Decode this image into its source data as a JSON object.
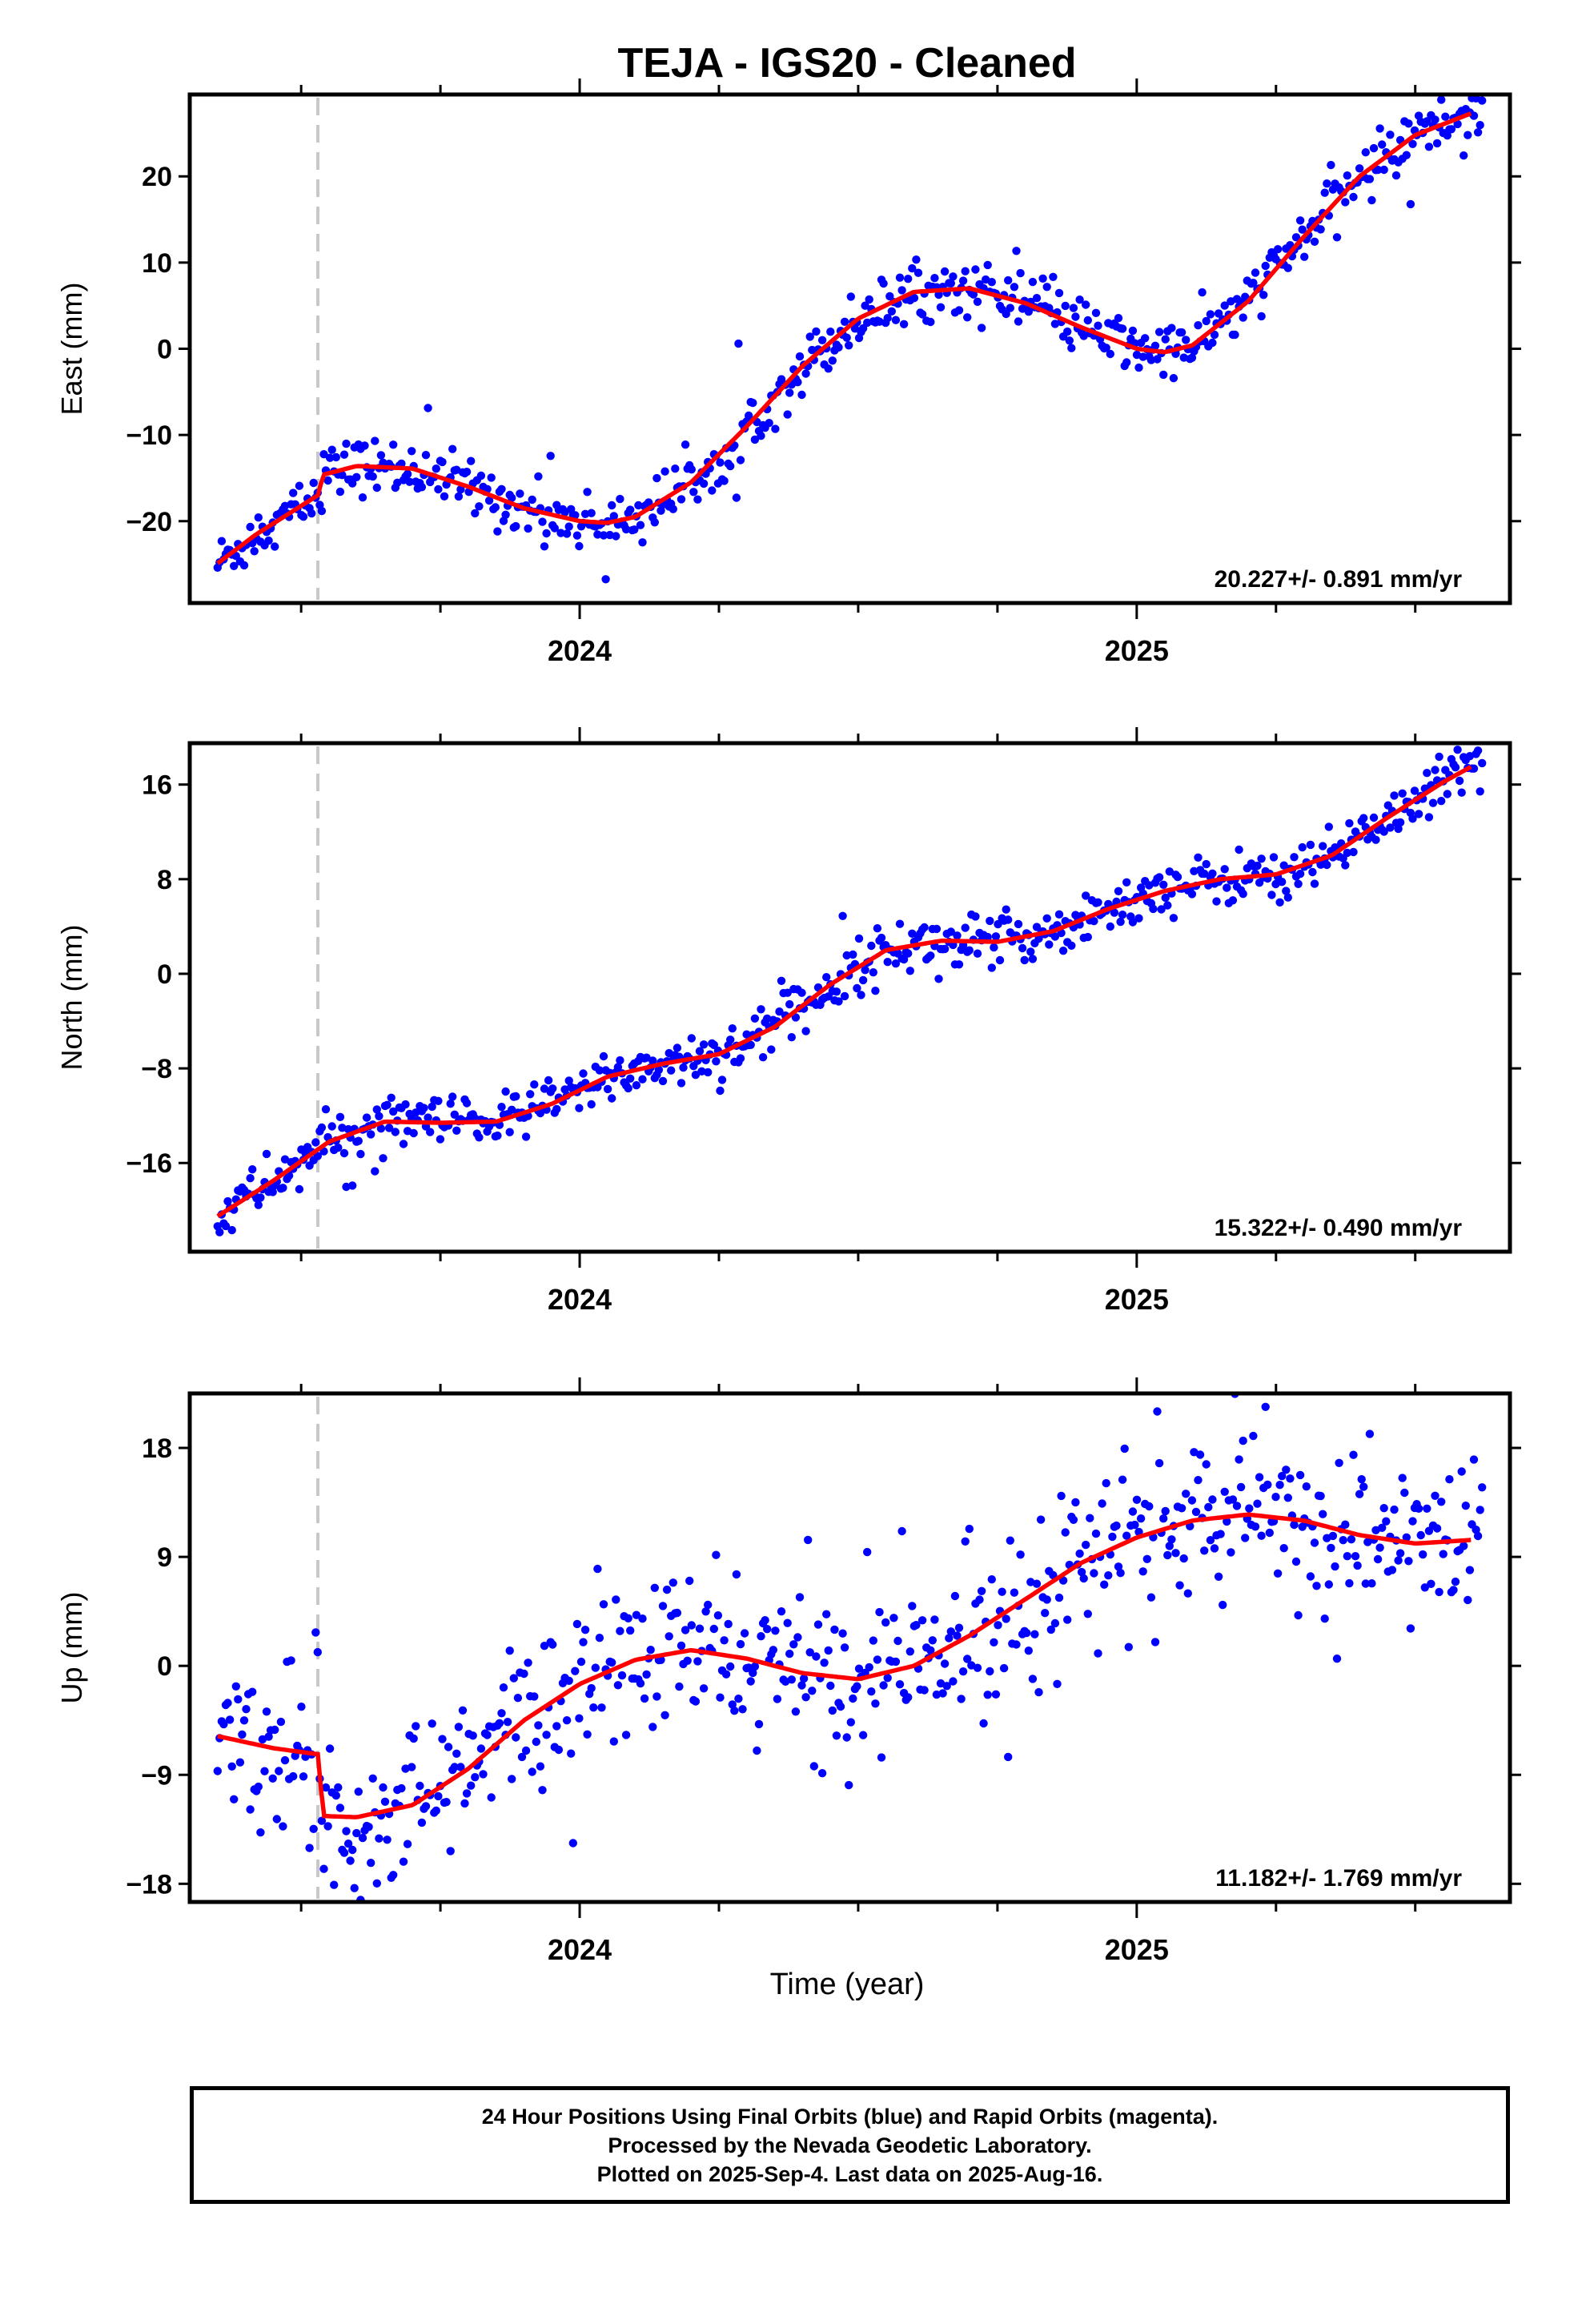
{
  "title": "TEJA  - IGS20 - Cleaned",
  "xlabel": "Time (year)",
  "footer": {
    "line1": "24 Hour Positions Using Final Orbits (blue) and Rapid Orbits (magenta).",
    "line2": "Processed by the Nevada Geodetic Laboratory.",
    "line3": "Plotted on 2025-Sep-4. Last data on 2025-Aug-16."
  },
  "colors": {
    "points": "#0000ff",
    "model": "#ff0000",
    "offset_line": "#c8c8c8",
    "frame": "#000000"
  },
  "chart_data": [
    {
      "type": "scatter",
      "panel": "east",
      "ylabel": "East (mm)",
      "rate_label": "20.227+/- 0.891 mm/yr",
      "xlim": [
        2023.3,
        2025.67
      ],
      "ylim": [
        -29.5,
        29.5
      ],
      "yticks": [
        -20,
        -10,
        0,
        10,
        20
      ],
      "ytick_labels": [
        "−20",
        "−10",
        "0",
        "10",
        "20"
      ],
      "xticks": [
        2024,
        2025
      ],
      "xtick_labels": [
        "2024",
        "2025"
      ],
      "offset_epoch": 2023.53,
      "model": {
        "x": [
          2023.35,
          2023.42,
          2023.53,
          2023.54,
          2023.6,
          2023.7,
          2023.8,
          2023.9,
          2024.0,
          2024.05,
          2024.1,
          2024.2,
          2024.3,
          2024.4,
          2024.5,
          2024.6,
          2024.7,
          2024.8,
          2024.9,
          2025.0,
          2025.05,
          2025.1,
          2025.2,
          2025.3,
          2025.4,
          2025.5,
          2025.6
        ],
        "y": [
          -24.9,
          -21.5,
          -17.0,
          -14.6,
          -13.6,
          -13.9,
          -16.0,
          -18.5,
          -20.0,
          -20.2,
          -19.5,
          -15.5,
          -9.0,
          -2.0,
          3.5,
          6.6,
          7.0,
          5.3,
          2.5,
          0.0,
          -0.4,
          0.4,
          5.5,
          13.0,
          20.0,
          24.8,
          27.3
        ]
      },
      "noise": 1.6
    },
    {
      "type": "scatter",
      "panel": "north",
      "ylabel": "North (mm)",
      "rate_label": "15.322+/- 0.490 mm/yr",
      "xlim": [
        2023.3,
        2025.67
      ],
      "ylim": [
        -23.5,
        19.5
      ],
      "yticks": [
        -16,
        -8,
        0,
        8,
        16
      ],
      "ytick_labels": [
        "−16",
        "−8",
        "0",
        "8",
        "16"
      ],
      "xticks": [
        2024,
        2025
      ],
      "xtick_labels": [
        "2024",
        "2025"
      ],
      "offset_epoch": 2023.53,
      "model": {
        "x": [
          2023.35,
          2023.45,
          2023.55,
          2023.65,
          2023.75,
          2023.85,
          2023.95,
          2024.05,
          2024.15,
          2024.25,
          2024.35,
          2024.45,
          2024.55,
          2024.65,
          2024.75,
          2024.85,
          2024.95,
          2025.05,
          2025.15,
          2025.25,
          2025.35,
          2025.45,
          2025.55,
          2025.6
        ],
        "y": [
          -20.5,
          -17.5,
          -14.2,
          -12.5,
          -12.6,
          -12.5,
          -11.0,
          -8.7,
          -7.6,
          -6.8,
          -4.5,
          -0.9,
          2.0,
          2.8,
          2.7,
          3.6,
          5.5,
          7.0,
          8.0,
          8.4,
          10.0,
          13.2,
          16.2,
          17.5
        ]
      },
      "noise": 1.1
    },
    {
      "type": "scatter",
      "panel": "up",
      "ylabel": "Up (mm)",
      "rate_label": "11.182+/- 1.769 mm/yr",
      "xlim": [
        2023.3,
        2025.67
      ],
      "ylim": [
        -19.5,
        22.5
      ],
      "yticks": [
        -18,
        -9,
        0,
        9,
        18
      ],
      "ytick_labels": [
        "−18",
        "−9",
        "0",
        "9",
        "18"
      ],
      "xticks": [
        2024,
        2025
      ],
      "xtick_labels": [
        "2024",
        "2025"
      ],
      "offset_epoch": 2023.53,
      "model": {
        "x": [
          2023.35,
          2023.45,
          2023.53,
          2023.54,
          2023.6,
          2023.7,
          2023.8,
          2023.9,
          2024.0,
          2024.1,
          2024.2,
          2024.3,
          2024.4,
          2024.5,
          2024.6,
          2024.7,
          2024.8,
          2024.9,
          2025.0,
          2025.1,
          2025.2,
          2025.3,
          2025.4,
          2025.5,
          2025.6
        ],
        "y": [
          -5.8,
          -6.8,
          -7.3,
          -12.4,
          -12.5,
          -11.5,
          -8.5,
          -4.5,
          -1.5,
          0.5,
          1.3,
          0.6,
          -0.6,
          -1.1,
          0.0,
          2.5,
          5.5,
          8.5,
          10.6,
          12.0,
          12.5,
          12.0,
          10.8,
          10.1,
          10.4
        ]
      },
      "noise": 3.4
    }
  ]
}
